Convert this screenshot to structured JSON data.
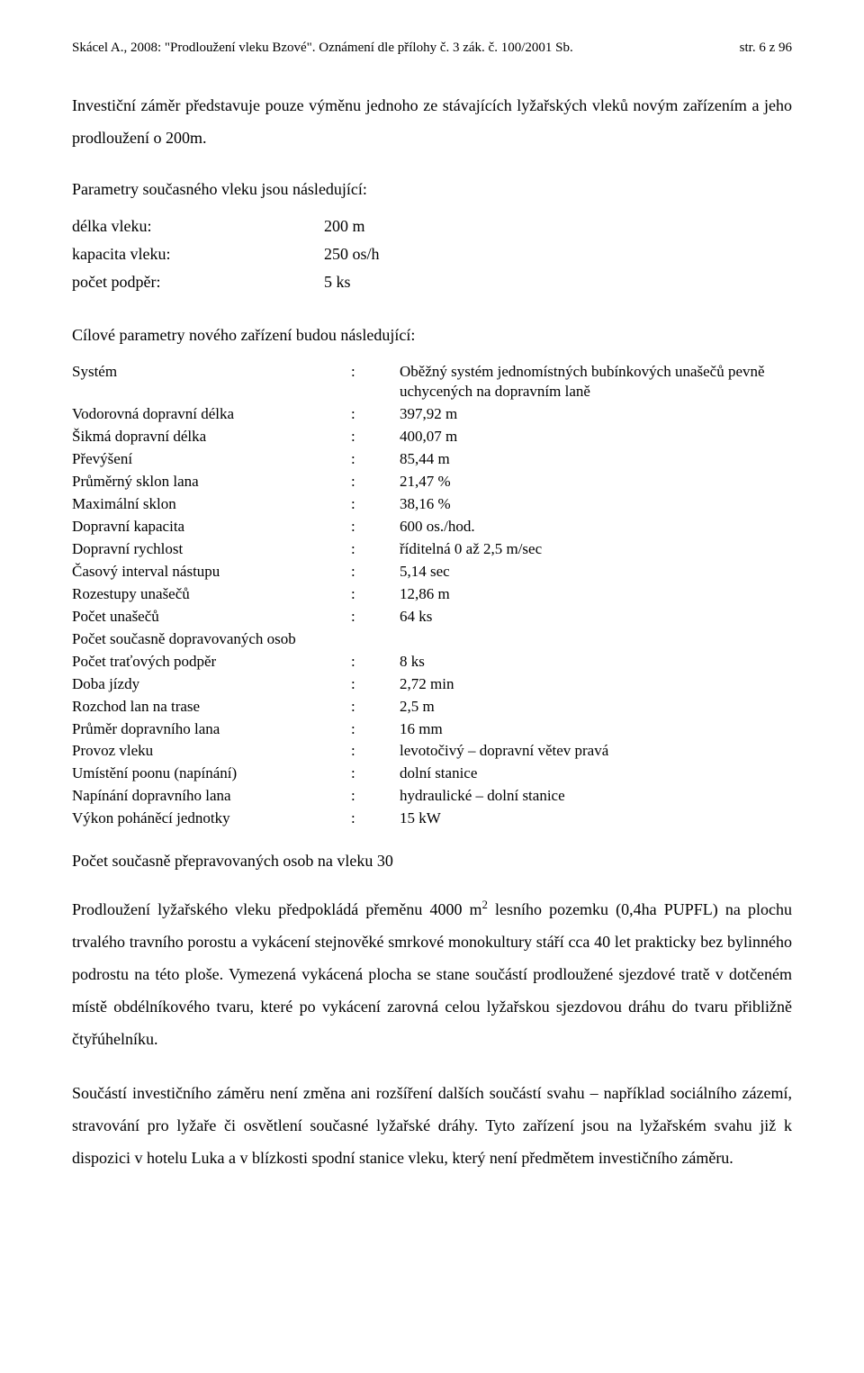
{
  "header": {
    "left": "Skácel A., 2008: \"Prodloužení vleku Bzové\". Oznámení dle přílohy č. 3 zák. č. 100/2001 Sb.",
    "right": "str. 6 z 96"
  },
  "intro": "Investiční záměr představuje pouze výměnu jednoho ze stávajících lyžařských vleků novým zařízením a jeho prodloužení o 200m.",
  "current_params_title": "Parametry současného vleku jsou následující:",
  "current_params": [
    {
      "k": "délka vleku:",
      "v": "200 m"
    },
    {
      "k": "kapacita vleku:",
      "v": "250 os/h"
    },
    {
      "k": "počet podpěr:",
      "v": "5 ks"
    }
  ],
  "target_params_title": "Cílové parametry nového zařízení budou následující:",
  "target_params": [
    {
      "label": "Systém",
      "colon": ":",
      "val": "Oběžný systém jednomístných bubínkových unašečů pevně uchycených na dopravním laně"
    },
    {
      "label": "Vodorovná dopravní délka",
      "colon": ":",
      "val": "397,92 m"
    },
    {
      "label": "Šikmá dopravní délka",
      "colon": ":",
      "val": "400,07 m"
    },
    {
      "label": "Převýšení",
      "colon": ":",
      "val": "85,44 m"
    },
    {
      "label": "Průměrný sklon lana",
      "colon": ":",
      "val": "21,47 %"
    },
    {
      "label": "Maximální sklon",
      "colon": ":",
      "val": "38,16 %"
    },
    {
      "label": "Dopravní kapacita",
      "colon": ":",
      "val": "600 os./hod."
    },
    {
      "label": "Dopravní rychlost",
      "colon": ":",
      "val": "říditelná  0 až 2,5 m/sec"
    },
    {
      "label": "Časový interval nástupu",
      "colon": ":",
      "val": "5,14 sec"
    },
    {
      "label": "Rozestupy unašečů",
      "colon": ":",
      "val": "12,86 m"
    },
    {
      "label": "Počet unašečů",
      "colon": ":",
      "val": "64 ks"
    },
    {
      "label": "Počet současně dopravovaných osob",
      "colon": "",
      "val": ""
    },
    {
      "label": "Počet traťových podpěr",
      "colon": ":",
      "val": "8 ks"
    },
    {
      "label": "Doba jízdy",
      "colon": ":",
      "val": "2,72 min"
    },
    {
      "label": "Rozchod lan na trase",
      "colon": ":",
      "val": "2,5 m"
    },
    {
      "label": "Průměr dopravního lana",
      "colon": ":",
      "val": "16 mm"
    },
    {
      "label": "Provoz vleku",
      "colon": ":",
      "val": "levotočivý – dopravní větev pravá"
    },
    {
      "label": "Umístění poonu (napínání)",
      "colon": ":",
      "val": "dolní stanice"
    },
    {
      "label": "Napínání dopravního lana",
      "colon": ":",
      "val": "hydraulické – dolní stanice"
    },
    {
      "label": "Výkon poháněcí jednotky",
      "colon": ":",
      "val": "15 kW"
    }
  ],
  "capacity_line": "Počet současně přepravovaných osob na vleku 30",
  "para1_pre": "Prodloužení lyžařského vleku předpokládá přeměnu 4000 m",
  "para1_sup": "2",
  "para1_post": " lesního pozemku (0,4ha PUPFL) na plochu trvalého travního porostu a vykácení stejnověké smrkové monokultury stáří cca 40 let prakticky bez bylinného podrostu na této ploše. Vymezená vykácená plocha se stane součástí prodloužené sjezdové tratě v dotčeném místě obdélníkového tvaru, které po vykácení zarovná celou lyžařskou sjezdovou dráhu do tvaru přibližně čtyřúhelníku.",
  "para2": "Součástí investičního záměru není změna ani rozšíření dalších součástí svahu – například sociálního zázemí, stravování pro lyžaře či osvětlení současné lyžařské dráhy. Tyto zařízení jsou na lyžařském svahu již k dispozici v hotelu Luka a v blízkosti spodní stanice vleku, který není předmětem investičního záměru."
}
